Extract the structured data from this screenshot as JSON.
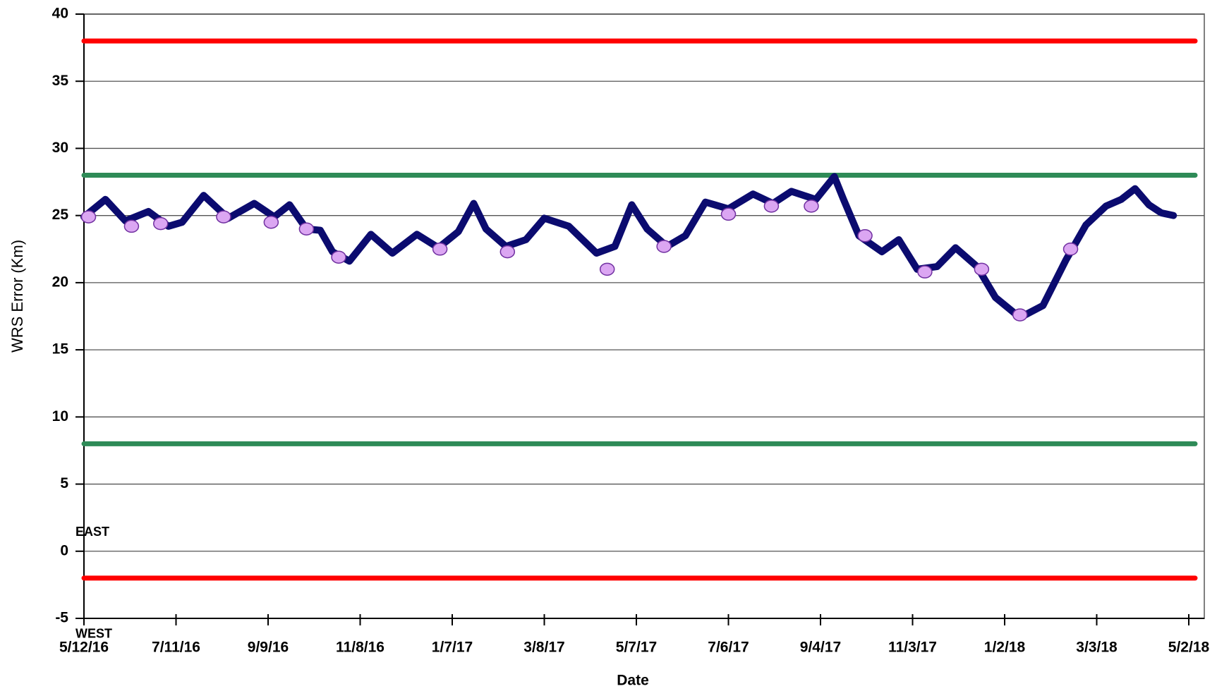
{
  "chart_data": {
    "type": "line",
    "x_label": "Date",
    "y_label": "WRS Error (Km)",
    "xlim": [
      "2016-05-12",
      "2018-05-02"
    ],
    "xticks": [
      {
        "value": "2016-05-12",
        "label": "5/12/16"
      },
      {
        "value": "2016-07-11",
        "label": "7/11/16"
      },
      {
        "value": "2016-09-09",
        "label": "9/9/16"
      },
      {
        "value": "2016-11-08",
        "label": "11/8/16"
      },
      {
        "value": "2017-01-07",
        "label": "1/7/17"
      },
      {
        "value": "2017-03-08",
        "label": "3/8/17"
      },
      {
        "value": "2017-05-07",
        "label": "5/7/17"
      },
      {
        "value": "2017-07-06",
        "label": "7/6/17"
      },
      {
        "value": "2017-09-04",
        "label": "9/4/17"
      },
      {
        "value": "2017-11-03",
        "label": "11/3/17"
      },
      {
        "value": "2018-01-02",
        "label": "1/2/18"
      },
      {
        "value": "2018-03-03",
        "label": "3/3/18"
      },
      {
        "value": "2018-05-02",
        "label": "5/2/18"
      }
    ],
    "ylim": [
      -5,
      40
    ],
    "yticks": [
      -5,
      0,
      5,
      10,
      15,
      20,
      25,
      30,
      35,
      40
    ],
    "grid": true,
    "reference_lines": [
      {
        "value": 38,
        "color": "#ff0000"
      },
      {
        "value": 28,
        "color": "#2e8b57"
      },
      {
        "value": 8,
        "color": "#2e8b57"
      },
      {
        "value": -2,
        "color": "#ff0000"
      }
    ],
    "annotations": [
      {
        "text": "EAST",
        "x": "2016-05-12",
        "y": 1.4
      },
      {
        "text": "WEST",
        "x": "2016-05-12",
        "y": -6.2
      }
    ],
    "series": [
      {
        "kind": "line",
        "color": "#0b0b6f",
        "x": [
          "2016-05-12",
          "2016-05-26",
          "2016-06-08",
          "2016-06-23",
          "2016-07-06",
          "2016-07-15",
          "2016-07-29",
          "2016-08-14",
          "2016-08-31",
          "2016-09-13",
          "2016-09-23",
          "2016-10-04",
          "2016-10-13",
          "2016-10-21",
          "2016-11-01",
          "2016-11-15",
          "2016-11-29",
          "2016-12-15",
          "2016-12-29",
          "2017-01-11",
          "2017-01-21",
          "2017-01-29",
          "2017-02-11",
          "2017-02-24",
          "2017-03-08",
          "2017-03-24",
          "2017-04-11",
          "2017-04-23",
          "2017-05-04",
          "2017-05-14",
          "2017-05-27",
          "2017-06-08",
          "2017-06-21",
          "2017-07-06",
          "2017-07-22",
          "2017-08-04",
          "2017-08-16",
          "2017-09-01",
          "2017-09-13",
          "2017-09-19",
          "2017-09-29",
          "2017-10-14",
          "2017-10-25",
          "2017-11-06",
          "2017-11-19",
          "2017-12-01",
          "2017-12-15",
          "2017-12-27",
          "2018-01-12",
          "2018-01-27",
          "2018-02-11",
          "2018-02-24",
          "2018-03-09",
          "2018-03-19",
          "2018-03-28",
          "2018-04-06",
          "2018-04-14",
          "2018-04-22"
        ],
        "values": [
          24.9,
          26.2,
          24.6,
          25.3,
          24.2,
          24.5,
          26.5,
          24.8,
          25.9,
          24.9,
          25.8,
          24.0,
          23.9,
          22.3,
          21.6,
          23.6,
          22.2,
          23.6,
          22.6,
          23.8,
          25.9,
          24.0,
          22.7,
          23.2,
          24.8,
          24.2,
          22.2,
          22.7,
          25.8,
          24.0,
          22.7,
          23.5,
          26.0,
          25.5,
          26.6,
          25.9,
          26.8,
          26.2,
          27.9,
          26.2,
          23.5,
          22.3,
          23.2,
          21.0,
          21.2,
          22.6,
          21.2,
          18.9,
          17.4,
          18.3,
          21.7,
          24.3,
          25.7,
          26.2,
          27.0,
          25.8,
          25.2,
          25.0
        ]
      },
      {
        "kind": "scatter",
        "color": "#dba6f2",
        "edge_color": "#7030a0",
        "x": [
          "2016-05-15",
          "2016-06-12",
          "2016-07-01",
          "2016-08-11",
          "2016-09-11",
          "2016-10-04",
          "2016-10-25",
          "2016-12-30",
          "2017-02-12",
          "2017-04-18",
          "2017-05-25",
          "2017-07-06",
          "2017-08-03",
          "2017-08-29",
          "2017-10-03",
          "2017-11-11",
          "2017-12-18",
          "2018-01-12",
          "2018-02-14"
        ],
        "values": [
          24.9,
          24.2,
          24.4,
          24.9,
          24.5,
          24.0,
          21.9,
          22.5,
          22.3,
          21.0,
          22.7,
          25.1,
          25.7,
          25.7,
          23.5,
          20.8,
          21.0,
          17.6,
          22.5
        ]
      }
    ]
  }
}
